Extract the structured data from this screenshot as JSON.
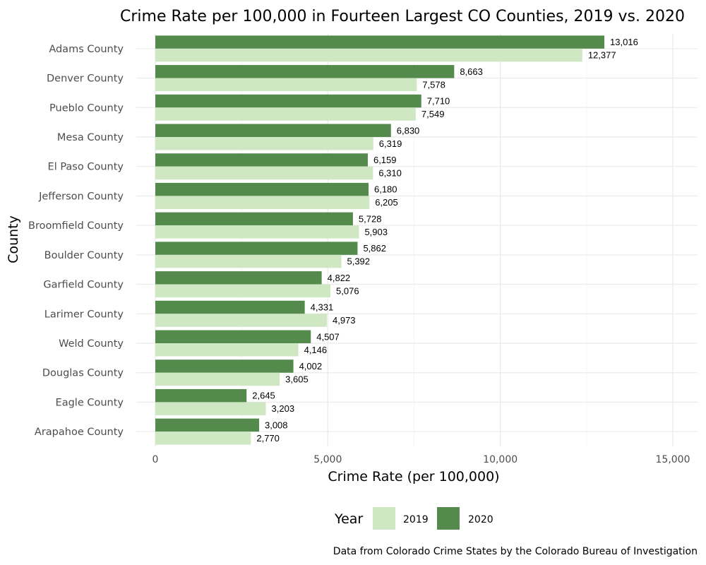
{
  "chart_data": {
    "type": "bar",
    "orientation": "horizontal",
    "title": "Crime Rate per 100,000 in Fourteen Largest CO Counties, 2019 vs. 2020",
    "xlabel": "Crime Rate (per 100,000)",
    "ylabel": "County",
    "caption": "Data from Colorado Crime States by the Colorado Bureau of Investigation",
    "xlim": [
      0,
      15000
    ],
    "x_ticks": [
      0,
      5000,
      10000,
      15000
    ],
    "x_tick_labels": [
      "0",
      "5,000",
      "10,000",
      "15,000"
    ],
    "grid": true,
    "legend_position": "bottom",
    "legend_title": "Year",
    "categories": [
      "Adams County",
      "Denver County",
      "Pueblo County",
      "Mesa County",
      "El Paso County",
      "Jefferson County",
      "Broomfield County",
      "Boulder County",
      "Garfield County",
      "Larimer County",
      "Weld County",
      "Douglas County",
      "Eagle County",
      "Arapahoe County"
    ],
    "series": [
      {
        "name": "2020",
        "color": "#548b4d",
        "values": [
          13016,
          8663,
          7710,
          6830,
          6159,
          6180,
          5728,
          5862,
          4822,
          4331,
          4507,
          4002,
          2645,
          3008
        ],
        "labels": [
          "13,016",
          "8,663",
          "7,710",
          "6,830",
          "6,159",
          "6,180",
          "5,728",
          "5,862",
          "4,822",
          "4,331",
          "4,507",
          "4,002",
          "2,645",
          "3,008"
        ]
      },
      {
        "name": "2019",
        "color": "#cfe7c2",
        "values": [
          12377,
          7578,
          7549,
          6319,
          6310,
          6205,
          5903,
          5392,
          5076,
          4973,
          4146,
          3605,
          3203,
          2770
        ],
        "labels": [
          "12,377",
          "7,578",
          "7,549",
          "6,319",
          "6,310",
          "6,205",
          "5,903",
          "5,392",
          "5,076",
          "4,973",
          "4,146",
          "3,605",
          "3,203",
          "2,770"
        ]
      }
    ],
    "legend_entries": [
      {
        "label": "2019",
        "color": "#cfe7c2"
      },
      {
        "label": "2020",
        "color": "#548b4d"
      }
    ]
  }
}
